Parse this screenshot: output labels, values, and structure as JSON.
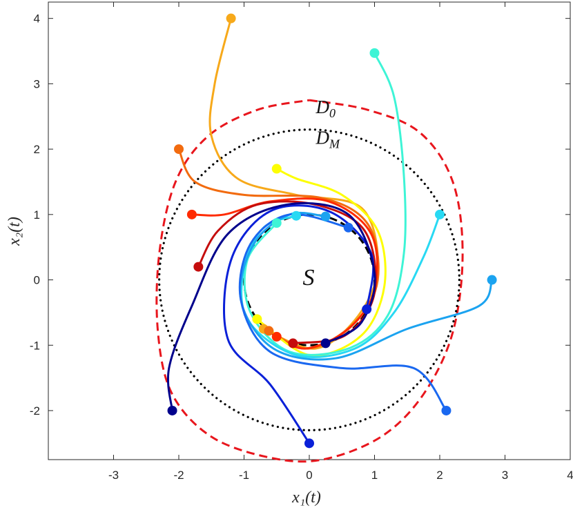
{
  "chart_data": {
    "type": "line",
    "xlabel": "x₁(t)",
    "ylabel": "x₂(t)",
    "xlim": [
      -4,
      4
    ],
    "ylim": [
      -2.75,
      4.25
    ],
    "xticks": [
      "-3",
      "-2",
      "-1",
      "0",
      "1",
      "2",
      "3",
      "4"
    ],
    "yticks": [
      "-2",
      "-1",
      "0",
      "1",
      "2",
      "3",
      "4"
    ],
    "grid": false,
    "legend": "none",
    "annotations": [
      {
        "text": "D",
        "sub": "0",
        "x": 0.1,
        "y": 2.55
      },
      {
        "text": "D",
        "sub": "M",
        "x": 0.1,
        "y": 2.08
      },
      {
        "text": "S",
        "x": -0.1,
        "y": -0.08
      }
    ],
    "regions": [
      {
        "id": "D0",
        "style": "red dashed",
        "color": "#e8161d",
        "points": [
          [
            0,
            2.75
          ],
          [
            0.9,
            2.6
          ],
          [
            1.7,
            2.25
          ],
          [
            2.2,
            1.5
          ],
          [
            2.35,
            0.4
          ],
          [
            2.2,
            -0.8
          ],
          [
            1.75,
            -1.75
          ],
          [
            1.1,
            -2.4
          ],
          [
            0.2,
            -2.75
          ],
          [
            -0.6,
            -2.72
          ],
          [
            -1.5,
            -2.4
          ],
          [
            -2.1,
            -1.75
          ],
          [
            -2.32,
            -0.8
          ],
          [
            -2.3,
            0.4
          ],
          [
            -2.05,
            1.5
          ],
          [
            -1.55,
            2.2
          ],
          [
            -0.8,
            2.6
          ],
          [
            0,
            2.75
          ]
        ]
      },
      {
        "id": "DM",
        "style": "black dotted circle",
        "color": "#000000",
        "center": [
          0,
          0
        ],
        "radius": 2.3
      },
      {
        "id": "S",
        "style": "black dashed circle",
        "color": "#000000",
        "center": [
          0,
          0
        ],
        "radius": 1.0
      }
    ],
    "series": [
      {
        "color": "#f7a91a",
        "start": [
          -1.2,
          4.0
        ],
        "end": [
          -0.7,
          -0.75
        ],
        "path": [
          [
            -1.2,
            4.0
          ],
          [
            -1.45,
            3.0
          ],
          [
            -1.5,
            2.2
          ],
          [
            -1.1,
            1.55
          ],
          [
            -0.2,
            1.3
          ],
          [
            0.8,
            1.1
          ],
          [
            1.05,
            0.2
          ],
          [
            0.75,
            -0.55
          ],
          [
            0.1,
            -1.05
          ],
          [
            -0.7,
            -0.75
          ]
        ]
      },
      {
        "color": "#f26b0f",
        "start": [
          -2.0,
          2.0
        ],
        "end": [
          -0.62,
          -0.78
        ],
        "path": [
          [
            -2.0,
            2.0
          ],
          [
            -1.75,
            1.5
          ],
          [
            -1.0,
            1.3
          ],
          [
            0.2,
            1.25
          ],
          [
            0.9,
            0.85
          ],
          [
            1.05,
            0.0
          ],
          [
            0.7,
            -0.65
          ],
          [
            0.0,
            -1.05
          ],
          [
            -0.62,
            -0.78
          ]
        ]
      },
      {
        "color": "#ff2a00",
        "start": [
          -1.8,
          1.0
        ],
        "end": [
          -0.5,
          -0.87
        ],
        "path": [
          [
            -1.8,
            1.0
          ],
          [
            -1.3,
            1.0
          ],
          [
            -0.6,
            1.2
          ],
          [
            0.3,
            1.2
          ],
          [
            0.95,
            0.7
          ],
          [
            1.0,
            -0.15
          ],
          [
            0.6,
            -0.75
          ],
          [
            -0.05,
            -1.05
          ],
          [
            -0.5,
            -0.87
          ]
        ]
      },
      {
        "color": "#c50d0d",
        "start": [
          -1.7,
          0.2
        ],
        "end": [
          -0.25,
          -0.97
        ],
        "path": [
          [
            -1.7,
            0.2
          ],
          [
            -1.4,
            0.75
          ],
          [
            -0.8,
            1.15
          ],
          [
            0.1,
            1.15
          ],
          [
            0.85,
            0.75
          ],
          [
            1.0,
            -0.2
          ],
          [
            0.55,
            -0.85
          ],
          [
            -0.25,
            -0.97
          ]
        ]
      },
      {
        "color": "#fdfe03",
        "start": [
          -0.5,
          1.7
        ],
        "end": [
          -0.8,
          -0.6
        ],
        "path": [
          [
            -0.5,
            1.7
          ],
          [
            -0.2,
            1.55
          ],
          [
            0.5,
            1.3
          ],
          [
            1.05,
            0.75
          ],
          [
            1.15,
            -0.1
          ],
          [
            0.8,
            -0.85
          ],
          [
            0.0,
            -1.15
          ],
          [
            -0.8,
            -0.6
          ]
        ]
      },
      {
        "color": "#3ef4d6",
        "start": [
          1.0,
          3.47
        ],
        "end": [
          -0.5,
          0.87
        ],
        "path": [
          [
            1.0,
            3.47
          ],
          [
            1.3,
            2.8
          ],
          [
            1.45,
            1.6
          ],
          [
            1.45,
            0.4
          ],
          [
            1.2,
            -0.55
          ],
          [
            0.6,
            -1.05
          ],
          [
            -0.3,
            -1.1
          ],
          [
            -0.9,
            -0.5
          ],
          [
            -0.95,
            0.3
          ],
          [
            -0.5,
            0.87
          ]
        ]
      },
      {
        "color": "#28d9f3",
        "start": [
          2.0,
          1.0
        ],
        "end": [
          -0.2,
          0.98
        ],
        "path": [
          [
            2.0,
            1.0
          ],
          [
            1.75,
            0.35
          ],
          [
            1.3,
            -0.5
          ],
          [
            0.7,
            -1.05
          ],
          [
            -0.2,
            -1.15
          ],
          [
            -0.95,
            -0.6
          ],
          [
            -1.0,
            0.2
          ],
          [
            -0.7,
            0.8
          ],
          [
            -0.2,
            0.98
          ]
        ]
      },
      {
        "color": "#1ba3f0",
        "start": [
          2.8,
          0.0
        ],
        "end": [
          0.25,
          0.97
        ],
        "path": [
          [
            2.8,
            0.0
          ],
          [
            2.6,
            -0.4
          ],
          [
            1.5,
            -0.75
          ],
          [
            0.4,
            -1.2
          ],
          [
            -0.55,
            -1.05
          ],
          [
            -1.05,
            -0.3
          ],
          [
            -0.85,
            0.55
          ],
          [
            -0.3,
            1.0
          ],
          [
            0.25,
            0.97
          ]
        ]
      },
      {
        "color": "#1a68f0",
        "start": [
          2.1,
          -2.0
        ],
        "end": [
          0.6,
          0.8
        ],
        "path": [
          [
            2.1,
            -2.0
          ],
          [
            1.6,
            -1.35
          ],
          [
            0.5,
            -1.35
          ],
          [
            -0.6,
            -1.1
          ],
          [
            -1.05,
            -0.3
          ],
          [
            -0.9,
            0.55
          ],
          [
            -0.3,
            1.0
          ],
          [
            0.6,
            0.8
          ]
        ]
      },
      {
        "color": "#0a20d8",
        "start": [
          0.0,
          -2.5
        ],
        "end": [
          0.88,
          -0.45
        ],
        "path": [
          [
            0.0,
            -2.5
          ],
          [
            -0.6,
            -1.6
          ],
          [
            -1.25,
            -0.9
          ],
          [
            -1.2,
            0.3
          ],
          [
            -0.6,
            1.05
          ],
          [
            0.3,
            1.05
          ],
          [
            0.95,
            0.4
          ],
          [
            0.88,
            -0.45
          ]
        ]
      },
      {
        "color": "#00008c",
        "start": [
          -2.1,
          -2.0
        ],
        "end": [
          0.25,
          -0.97
        ],
        "path": [
          [
            -2.1,
            -2.0
          ],
          [
            -2.15,
            -1.35
          ],
          [
            -1.8,
            -0.4
          ],
          [
            -1.25,
            0.7
          ],
          [
            -0.35,
            1.15
          ],
          [
            0.6,
            1.0
          ],
          [
            1.0,
            0.1
          ],
          [
            0.8,
            -0.65
          ],
          [
            0.25,
            -0.97
          ]
        ]
      }
    ]
  }
}
